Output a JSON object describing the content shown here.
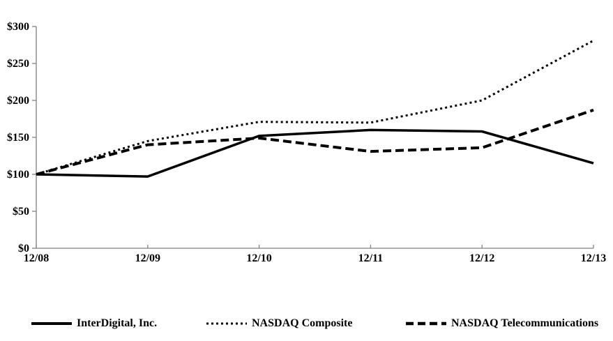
{
  "chart_data": {
    "type": "line",
    "title": "",
    "xlabel": "",
    "ylabel": "",
    "grid": false,
    "legend_position": "bottom",
    "line_color": "#000000",
    "axis_color": "#808080",
    "categories": [
      "12/08",
      "12/09",
      "12/10",
      "12/11",
      "12/12",
      "12/13"
    ],
    "y_ticks": [
      0,
      50,
      100,
      150,
      200,
      250,
      300
    ],
    "y_tick_labels": [
      "$0",
      "$50",
      "$100",
      "$150",
      "$200",
      "$250",
      "$300"
    ],
    "ylim": [
      0,
      300
    ],
    "series": [
      {
        "name": "InterDigital, Inc.",
        "line_style": "solid",
        "values": [
          100,
          97,
          152,
          160,
          158,
          115
        ]
      },
      {
        "name": "NASDAQ Composite",
        "line_style": "dotted",
        "values": [
          100,
          145,
          171,
          170,
          200,
          281
        ]
      },
      {
        "name": "NASDAQ Telecommunications",
        "line_style": "dashed",
        "values": [
          100,
          140,
          149,
          131,
          136,
          187
        ]
      }
    ]
  }
}
